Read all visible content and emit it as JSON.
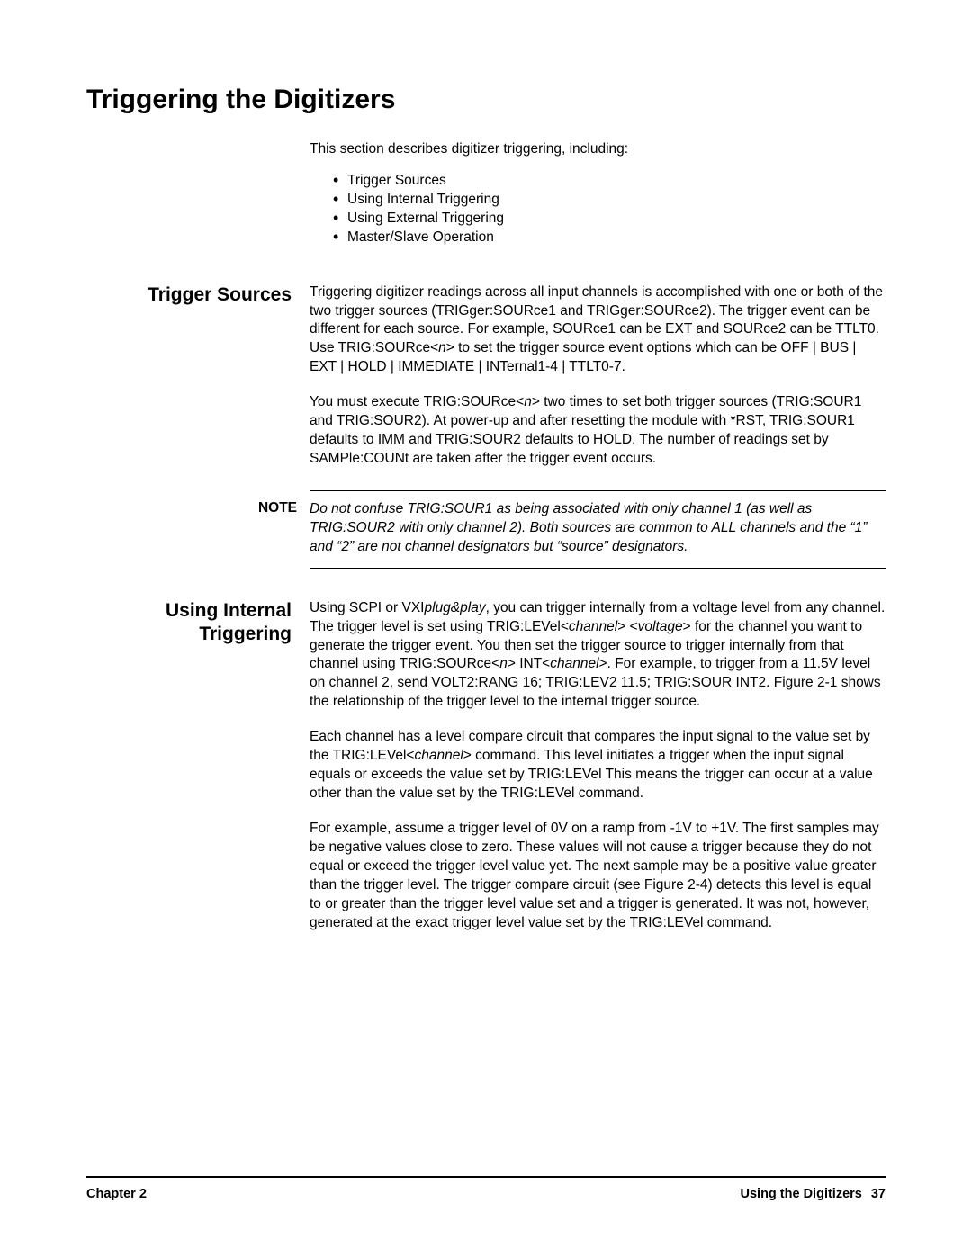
{
  "title": "Triggering the Digitizers",
  "intro": "This section describes digitizer triggering, including:",
  "bullets": [
    "Trigger Sources",
    "Using Internal Triggering",
    "Using External Triggering",
    "Master/Slave Operation"
  ],
  "sections": {
    "trigger_sources": {
      "heading": "Trigger Sources",
      "p1a": "Triggering digitizer readings across all input channels is accomplished with one or both of the two trigger sources (TRIGger:SOURce1 and TRIGger:SOURce2). The trigger event can be different for each source. For example, SOURce1 can be EXT and SOURce2 can be TTLT0. Use TRIG:SOURce<",
      "p1b": "n",
      "p1c": "> to set the trigger source event options which can be OFF | BUS | EXT | HOLD | IMMEDIATE | INTernal1-4 | TTLT0-7.",
      "p2a": "You must execute TRIG:SOURce<",
      "p2b": "n",
      "p2c": "> two times to set both trigger sources (TRIG:SOUR1 and TRIG:SOUR2). At power-up and after resetting the module with *RST, TRIG:SOUR1 defaults to IMM and TRIG:SOUR2 defaults to HOLD. The number of readings set by SAMPle:COUNt are taken after the trigger event occurs."
    },
    "note": {
      "label": "NOTE",
      "body": "Do not confuse TRIG:SOUR1 as being associated with only channel 1 (as well as TRIG:SOUR2 with only channel 2).  Both sources are common to ALL channels and the “1” and “2” are not channel designators but “source” designators."
    },
    "internal": {
      "heading": "Using Internal Triggering",
      "p1a": "Using SCPI or VXI",
      "p1b": "plug&play",
      "p1c": ", you can trigger internally from a voltage level from any channel. The trigger level is set using TRIG:LEVel<",
      "p1d": "channel",
      "p1e": "> <",
      "p1f": "voltage",
      "p1g": "> for the channel you want to generate the trigger event. You then set the trigger source to trigger internally from that channel using TRIG:SOURce<",
      "p1h": "n",
      "p1i": ">  INT<",
      "p1j": "channel",
      "p1k": ">. For example, to trigger from a 11.5V level on channel 2, send  VOLT2:RANG  16;  TRIG:LEV2  11.5; TRIG:SOUR  INT2.  Figure 2-1 shows the relationship of the trigger level to the internal trigger source.",
      "p2a": "Each channel has a level compare circuit that compares the input signal to the value set by the TRIG:LEVel<",
      "p2b": "channel",
      "p2c": "> command.  This level initiates a trigger when the input signal equals or exceeds the value set by TRIG:LEVel This means the trigger can occur at a value other than the value set by the TRIG:LEVel command.",
      "p3": "For example, assume a trigger level of 0V on a ramp from -1V to +1V. The first samples may be negative values close to zero. These values will not cause a trigger because they do not equal or exceed the trigger level value yet.  The next sample may be a positive value greater than the trigger level.  The trigger compare circuit (see Figure 2-4) detects this level is equal to or greater than the trigger level value set and a trigger is generated. It was not, however, generated at the exact trigger level value set by the TRIG:LEVel command."
    }
  },
  "footer": {
    "left": "Chapter 2",
    "right_text": "Using the Digitizers",
    "page": "37"
  }
}
